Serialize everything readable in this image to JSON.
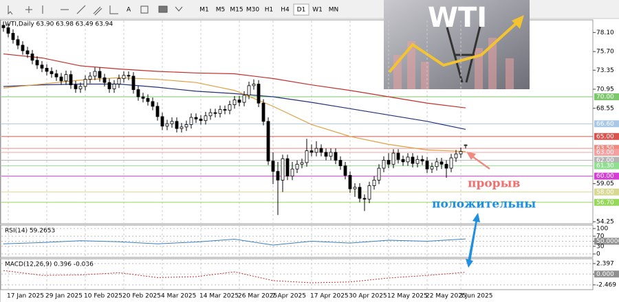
{
  "toolbar": {
    "timeframes": [
      "M1",
      "M5",
      "M15",
      "M30",
      "H1",
      "H4",
      "D1",
      "W1",
      "MN"
    ],
    "active": "D1"
  },
  "banner": "WTI",
  "annotations": [
    "прорыв",
    "положительны"
  ],
  "chart_data": [
    {
      "type": "candlestick",
      "title": "WTI,Daily 63.90 63.98 63.49 63.94",
      "open": [
        79.0,
        78.7,
        78.0,
        77.2,
        76.5,
        75.8,
        75.4,
        74.6,
        74.0,
        73.6,
        73.2,
        72.9,
        72.5,
        72.0,
        72.8,
        71.5,
        71.0,
        71.3,
        72.2,
        72.6,
        73.2,
        72.4,
        71.8,
        71.0,
        71.6,
        72.3,
        72.7,
        72.6,
        70.9,
        70.0,
        69.8,
        69.4,
        68.8,
        67.5,
        66.3,
        66.6,
        66.9,
        66.0,
        66.2,
        66.5,
        67.4,
        67.2,
        67.0,
        67.6,
        68.0,
        67.9,
        68.4,
        68.3,
        69.0,
        69.6,
        69.3,
        70.2,
        71.4,
        71.6,
        69.2,
        66.9,
        61.9,
        60.6,
        59.5,
        62.2,
        60.0,
        60.9,
        61.5,
        61.7,
        63.2,
        63.0,
        63.5,
        63.0,
        62.5,
        63.0,
        62.0,
        61.3,
        60.1,
        58.4,
        58.6,
        57.2,
        57.1,
        58.8,
        59.5,
        61.0,
        62.0,
        61.5,
        62.9,
        62.1,
        61.8,
        62.4,
        61.6,
        62.1,
        61.9,
        60.9,
        61.2,
        61.8,
        61.5,
        61.0,
        62.3,
        62.8,
        63.9
      ],
      "high": [
        79.5,
        79.2,
        78.5,
        77.7,
        77.0,
        76.3,
        75.9,
        75.1,
        74.5,
        74.1,
        73.7,
        73.4,
        73.0,
        73.3,
        73.3,
        72.0,
        71.8,
        72.7,
        73.1,
        73.7,
        73.7,
        72.9,
        72.3,
        72.1,
        72.8,
        73.2,
        73.2,
        73.1,
        71.4,
        70.5,
        70.3,
        69.9,
        69.3,
        68.0,
        67.1,
        67.4,
        67.4,
        66.7,
        67.0,
        67.9,
        67.9,
        67.7,
        68.1,
        68.5,
        68.5,
        68.9,
        68.9,
        69.5,
        70.1,
        70.1,
        70.7,
        71.9,
        72.2,
        72.1,
        69.7,
        67.4,
        63.0,
        61.8,
        62.7,
        62.7,
        61.8,
        62.0,
        62.2,
        64.7,
        64.0,
        64.4,
        64.0,
        63.5,
        63.5,
        63.5,
        62.5,
        61.8,
        60.6,
        59.1,
        59.1,
        57.7,
        59.3,
        60.0,
        61.5,
        62.5,
        62.9,
        63.4,
        63.4,
        62.6,
        62.9,
        62.9,
        62.6,
        62.6,
        62.4,
        61.7,
        62.3,
        62.3,
        62.0,
        62.8,
        63.3,
        63.6,
        63.98
      ],
      "low": [
        78.2,
        77.5,
        76.7,
        76.0,
        75.3,
        74.9,
        74.1,
        73.5,
        73.1,
        72.7,
        72.4,
        72.0,
        71.5,
        71.5,
        71.0,
        70.5,
        70.5,
        70.8,
        71.7,
        72.1,
        71.9,
        71.3,
        70.5,
        70.5,
        71.1,
        71.8,
        72.1,
        70.4,
        69.5,
        69.3,
        68.9,
        68.3,
        67.0,
        65.8,
        65.8,
        66.1,
        65.5,
        65.5,
        65.7,
        66.0,
        66.7,
        66.5,
        66.5,
        67.1,
        67.4,
        67.4,
        67.8,
        67.8,
        68.5,
        68.8,
        68.8,
        69.7,
        70.9,
        68.7,
        66.4,
        61.4,
        59.0,
        55.1,
        58.0,
        59.5,
        59.5,
        60.4,
        61.0,
        61.2,
        62.5,
        62.5,
        62.5,
        62.0,
        62.0,
        61.5,
        60.8,
        59.6,
        57.9,
        57.4,
        56.7,
        55.6,
        56.6,
        58.3,
        59.0,
        60.5,
        61.0,
        61.0,
        61.6,
        61.3,
        61.3,
        61.1,
        61.1,
        61.4,
        60.4,
        60.4,
        60.7,
        60.9,
        59.8,
        60.5,
        61.8,
        62.3,
        63.49
      ],
      "close": [
        78.7,
        78.0,
        77.2,
        76.5,
        75.8,
        75.4,
        74.6,
        74.0,
        73.6,
        73.2,
        72.9,
        72.5,
        72.0,
        72.8,
        71.5,
        71.0,
        71.3,
        72.2,
        72.6,
        73.2,
        72.4,
        71.8,
        71.0,
        71.6,
        72.3,
        72.7,
        72.6,
        70.9,
        70.0,
        69.8,
        69.4,
        68.8,
        67.5,
        66.3,
        66.6,
        66.9,
        66.0,
        66.2,
        66.5,
        67.4,
        67.2,
        67.0,
        67.6,
        68.0,
        67.9,
        68.4,
        68.3,
        69.0,
        69.6,
        69.3,
        70.2,
        71.4,
        71.6,
        69.2,
        66.9,
        61.9,
        60.6,
        59.5,
        62.2,
        60.0,
        60.9,
        61.5,
        61.7,
        63.2,
        63.0,
        63.5,
        63.0,
        62.5,
        63.0,
        62.0,
        61.3,
        60.1,
        58.4,
        58.6,
        57.2,
        57.1,
        58.8,
        59.5,
        61.0,
        62.0,
        61.5,
        62.9,
        62.1,
        61.8,
        62.4,
        61.6,
        62.1,
        61.9,
        60.9,
        61.2,
        61.8,
        61.5,
        61.0,
        62.3,
        62.8,
        63.1,
        63.94
      ],
      "up_color": "#ffffff",
      "down_color": "#000000",
      "ylim": [
        54.0,
        79.6
      ],
      "yticks": [
        {
          "value": 78.1,
          "label": "78.10"
        },
        {
          "value": 75.7,
          "label": "75.70"
        },
        73.35,
        70.95,
        68.55,
        59.05,
        54.25
      ],
      "xticks": [
        {
          "value": 1,
          "label": "17 Jan 2025"
        },
        {
          "value": 9,
          "label": "29 Jan 2025"
        },
        {
          "value": 17,
          "label": "10 Feb 2025"
        },
        {
          "value": 25,
          "label": "20 Feb 2025"
        },
        {
          "value": 33,
          "label": "4 Mar 2025"
        },
        {
          "value": 41,
          "label": "14 Mar 2025"
        },
        {
          "value": 49,
          "label": "26 Mar 2025"
        },
        {
          "value": 56,
          "label": "7 Apr 2025"
        },
        {
          "value": 64,
          "label": "17 Apr 2025"
        },
        {
          "value": 72,
          "label": "30 Apr 2025"
        },
        {
          "value": 80,
          "label": "12 May 2025"
        },
        {
          "value": 88,
          "label": "22 May 2025"
        },
        {
          "value": 95,
          "label": "3 Jun 2025"
        }
      ],
      "levels": [
        {
          "value": 70,
          "label": "70.00",
          "color": "#7cc96c"
        },
        {
          "value": 66.6,
          "label": "66.60",
          "color": "#a9c8e8"
        },
        {
          "value": 65,
          "label": "65.00",
          "color": "#d9534f"
        },
        {
          "value": 63.5,
          "label": "63.50",
          "color": "#f08a80"
        },
        {
          "value": 63,
          "label": "63.00",
          "color": "#f5a0a0"
        },
        {
          "value": 62,
          "label": "62.00",
          "color": "#b5b5b5"
        },
        {
          "value": 61.3,
          "label": "61.30",
          "color": "#8ee08e"
        },
        {
          "value": 60,
          "label": "60.00",
          "color": "#d63cd6"
        },
        {
          "value": 58,
          "label": "58.00",
          "color": "#d8d890"
        },
        {
          "value": 56.7,
          "label": "56.70",
          "color": "#96d85a"
        }
      ],
      "series": [
        {
          "color": "#c0302a",
          "x": [
            0,
            8,
            16,
            24,
            32,
            40,
            48,
            56,
            64,
            72,
            80,
            88,
            96
          ],
          "values": [
            75.4,
            74.9,
            73.9,
            73.5,
            73.2,
            73.0,
            72.9,
            72.3,
            71.5,
            70.8,
            70.0,
            69.2,
            68.6
          ]
        },
        {
          "color": "#23307a",
          "x": [
            0,
            8,
            16,
            24,
            32,
            40,
            48,
            56,
            64,
            72,
            80,
            88,
            96
          ],
          "values": [
            71.3,
            71.5,
            71.6,
            71.6,
            71.2,
            70.7,
            70.4,
            70.0,
            69.3,
            68.5,
            67.7,
            66.9,
            65.9
          ]
        },
        {
          "color": "#e0a040",
          "x": [
            0,
            8,
            16,
            24,
            32,
            40,
            48,
            56,
            64,
            72,
            80,
            88,
            96
          ],
          "values": [
            71.1,
            71.6,
            72.1,
            72.4,
            72.2,
            71.8,
            70.8,
            68.8,
            66.5,
            65.0,
            64.0,
            63.3,
            63.1
          ]
        }
      ]
    },
    {
      "type": "line",
      "title": "RSI(14) 59.2653",
      "color": "#3a7fc0",
      "x": [
        0,
        8,
        16,
        24,
        32,
        40,
        48,
        56,
        64,
        72,
        80,
        88,
        96
      ],
      "values": [
        40,
        45,
        52,
        48,
        40,
        47,
        58,
        35,
        50,
        43,
        54,
        50,
        59.2653
      ],
      "ylim": [
        0,
        100
      ],
      "yticks": [
        100,
        70,
        {
          "value": 50,
          "label": "50.0000"
        },
        30,
        0
      ]
    },
    {
      "type": "line",
      "title": "MACD(12,26,9) 0.396 -0.036",
      "color": "#c03030",
      "style": "dotted",
      "x": [
        0,
        8,
        16,
        24,
        32,
        40,
        48,
        56,
        64,
        72,
        80,
        88,
        96
      ],
      "values": [
        0.8,
        -0.3,
        -0.2,
        0.3,
        -0.8,
        -0.6,
        0.5,
        -1.5,
        -2.0,
        -1.8,
        -0.9,
        -0.3,
        0.396
      ],
      "ylim": [
        -3.25,
        3.34
      ],
      "yticks": [
        2.397,
        {
          "value": 0,
          "label": "0.000"
        },
        -2.469
      ]
    }
  ]
}
